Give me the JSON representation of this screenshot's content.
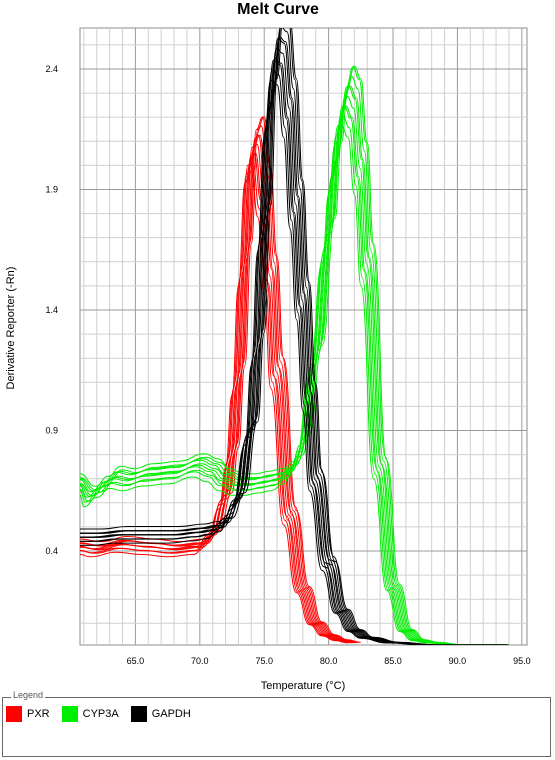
{
  "chart_data": {
    "type": "line",
    "title": "Melt Curve",
    "xlabel": "Temperature (°C)",
    "ylabel": "Derivative Reporter (-Rn)",
    "xlim": [
      60.7,
      95.4
    ],
    "ylim": [
      0.01,
      2.57
    ],
    "x_ticks": [
      65.0,
      70.0,
      75.0,
      80.0,
      85.0,
      90.0,
      95.0
    ],
    "x_tick_labels": [
      "65.0",
      "70.0",
      "75.0",
      "80.0",
      "85.0",
      "90.0",
      "95.0"
    ],
    "y_ticks": [
      0.4,
      0.9,
      1.4,
      1.9,
      2.4
    ],
    "y_tick_labels": [
      "0.4",
      "0.9",
      "1.4",
      "1.9",
      "2.4"
    ],
    "grid": true,
    "series": [
      {
        "name": "PXR",
        "color": "#ff0000",
        "x": [
          60.7,
          62.0,
          64.0,
          66.0,
          68.0,
          70.0,
          71.0,
          72.0,
          72.5,
          73.0,
          73.5,
          74.0,
          74.5,
          75.0,
          75.5,
          76.0,
          77.0,
          78.0,
          79.0,
          80.0,
          81.0,
          82.0
        ],
        "values": [
          0.42,
          0.41,
          0.43,
          0.42,
          0.41,
          0.42,
          0.47,
          0.62,
          0.8,
          1.12,
          1.6,
          2.05,
          2.1,
          1.9,
          1.55,
          1.15,
          0.55,
          0.24,
          0.1,
          0.05,
          0.03,
          0.02
        ]
      },
      {
        "name": "CYP3A",
        "color": "#00ee00",
        "x": [
          60.7,
          61.5,
          62.5,
          63.5,
          64.5,
          66.0,
          68.0,
          70.0,
          71.0,
          72.0,
          73.0,
          74.0,
          75.0,
          76.0,
          77.0,
          77.5,
          78.0,
          79.0,
          80.0,
          80.5,
          81.0,
          81.5,
          82.0,
          82.5,
          83.0,
          84.0,
          85.0,
          86.0,
          87.0,
          88.0,
          90.0,
          93.5
        ],
        "values": [
          0.68,
          0.63,
          0.67,
          0.71,
          0.7,
          0.72,
          0.73,
          0.76,
          0.74,
          0.7,
          0.68,
          0.68,
          0.69,
          0.7,
          0.73,
          0.77,
          0.85,
          1.2,
          1.7,
          2.0,
          2.22,
          2.3,
          2.25,
          2.0,
          1.6,
          0.75,
          0.25,
          0.07,
          0.03,
          0.02,
          0.01,
          0.01
        ]
      },
      {
        "name": "GAPDH",
        "color": "#000000",
        "x": [
          60.7,
          62.0,
          64.0,
          66.0,
          68.0,
          70.0,
          71.0,
          72.0,
          73.0,
          74.0,
          74.5,
          75.0,
          75.5,
          76.0,
          76.5,
          77.0,
          77.5,
          78.0,
          78.5,
          79.0,
          80.0,
          81.0,
          82.0,
          83.0,
          85.0,
          88.0,
          93.5
        ],
        "values": [
          0.46,
          0.46,
          0.47,
          0.47,
          0.47,
          0.48,
          0.49,
          0.52,
          0.62,
          0.9,
          1.25,
          1.75,
          2.25,
          2.5,
          2.48,
          2.25,
          1.85,
          1.45,
          1.05,
          0.7,
          0.35,
          0.15,
          0.07,
          0.04,
          0.02,
          0.01,
          0.01
        ]
      }
    ],
    "legend": {
      "title": "Legend",
      "placement": "bottom",
      "items": [
        {
          "label": "PXR",
          "color": "#ff0000"
        },
        {
          "label": "CYP3A",
          "color": "#00ee00"
        },
        {
          "label": "GAPDH",
          "color": "#000000"
        }
      ]
    }
  }
}
